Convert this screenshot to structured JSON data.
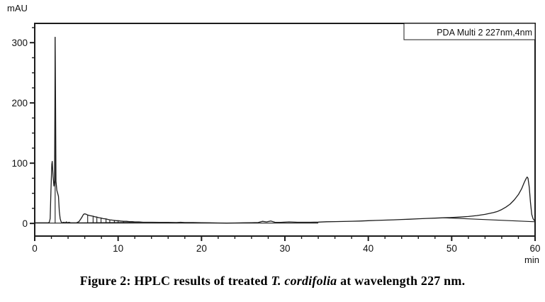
{
  "colors": {
    "trace": "#1c1c1c",
    "frame": "#1c1c1c",
    "text": "#111111",
    "background": "#ffffff"
  },
  "y_axis_title": "mAU",
  "x_axis_unit": "min",
  "legend_label": "PDA Multi 2 227nm,4nm",
  "caption": {
    "prefix": "Figure 2: HPLC results of treated ",
    "italic": "T. cordifolia",
    "suffix": " at wavelength 227 nm."
  },
  "chart_data": {
    "type": "line",
    "title": "",
    "xlabel": "min",
    "ylabel": "mAU",
    "xlim": [
      0,
      60
    ],
    "ylim": [
      -21,
      332
    ],
    "x_major_ticks": [
      0,
      10,
      20,
      30,
      40,
      50,
      60
    ],
    "x_minor_ticks": [
      2,
      4,
      6,
      8,
      12,
      14,
      16,
      18,
      22,
      24,
      26,
      28,
      32,
      34,
      36,
      38,
      42,
      44,
      46,
      48,
      52,
      54,
      56,
      58
    ],
    "y_major_ticks": [
      0,
      100,
      200,
      300
    ],
    "y_minor_ticks": [
      25,
      50,
      75,
      125,
      150,
      175,
      225,
      250,
      275,
      325
    ],
    "grid": false,
    "legend_position": "top-right-inside-box",
    "legend": [
      "PDA Multi 2 227nm,4nm"
    ],
    "series": [
      {
        "name": "PDA Multi 2 227nm,4nm signal",
        "points": [
          [
            0,
            1
          ],
          [
            1.0,
            1
          ],
          [
            1.6,
            1
          ],
          [
            1.75,
            2
          ],
          [
            1.85,
            8
          ],
          [
            1.95,
            55
          ],
          [
            2.05,
            98
          ],
          [
            2.1,
            103
          ],
          [
            2.2,
            78
          ],
          [
            2.3,
            62
          ],
          [
            2.38,
            70
          ],
          [
            2.42,
            200
          ],
          [
            2.45,
            309
          ],
          [
            2.5,
            200
          ],
          [
            2.55,
            70
          ],
          [
            2.65,
            55
          ],
          [
            2.75,
            50
          ],
          [
            2.85,
            45
          ],
          [
            2.95,
            20
          ],
          [
            3.05,
            8
          ],
          [
            3.15,
            3
          ],
          [
            3.3,
            1
          ],
          [
            3.5,
            2
          ],
          [
            3.65,
            1
          ],
          [
            3.8,
            2.5
          ],
          [
            3.95,
            1
          ],
          [
            4.1,
            2
          ],
          [
            4.3,
            1
          ],
          [
            4.6,
            1
          ],
          [
            5.0,
            1
          ],
          [
            5.3,
            3
          ],
          [
            5.6,
            9
          ],
          [
            5.85,
            15
          ],
          [
            6.0,
            16
          ],
          [
            6.2,
            15
          ],
          [
            6.35,
            14
          ],
          [
            6.6,
            13
          ],
          [
            7.0,
            12
          ],
          [
            7.2,
            11
          ],
          [
            7.45,
            10.5
          ],
          [
            7.7,
            9.5
          ],
          [
            7.95,
            9
          ],
          [
            8.2,
            8
          ],
          [
            8.55,
            7.5
          ],
          [
            8.8,
            6.5
          ],
          [
            9.0,
            6
          ],
          [
            9.3,
            5.5
          ],
          [
            9.55,
            5
          ],
          [
            9.8,
            4.5
          ],
          [
            10.0,
            4.5
          ],
          [
            10.3,
            4
          ],
          [
            10.65,
            3.5
          ],
          [
            11.0,
            3.5
          ],
          [
            11.35,
            3
          ],
          [
            11.7,
            3
          ],
          [
            12.0,
            2.5
          ],
          [
            12.5,
            2.5
          ],
          [
            13.0,
            2
          ],
          [
            14.0,
            2
          ],
          [
            15,
            1.8
          ],
          [
            16,
            1.8
          ],
          [
            17,
            1.5
          ],
          [
            17.5,
            2
          ],
          [
            18,
            1.5
          ],
          [
            19,
            1.5
          ],
          [
            20,
            1.2
          ],
          [
            21,
            1
          ],
          [
            22,
            0.8
          ],
          [
            23,
            0.5
          ],
          [
            24,
            0.8
          ],
          [
            25,
            1
          ],
          [
            26,
            1.2
          ],
          [
            26.8,
            1.5
          ],
          [
            27.3,
            3.5
          ],
          [
            27.8,
            2.5
          ],
          [
            28.3,
            4
          ],
          [
            28.8,
            2
          ],
          [
            29.5,
            1.8
          ],
          [
            30.5,
            2.5
          ],
          [
            31.5,
            2
          ],
          [
            33,
            2
          ],
          [
            34,
            2.2
          ],
          [
            35,
            2.8
          ],
          [
            36,
            3
          ],
          [
            37,
            3.2
          ],
          [
            38,
            3.6
          ],
          [
            39,
            4
          ],
          [
            40,
            4.5
          ],
          [
            41,
            5
          ],
          [
            42,
            5.5
          ],
          [
            43,
            6
          ],
          [
            44,
            6.5
          ],
          [
            45,
            7
          ],
          [
            46,
            7.7
          ],
          [
            47,
            8.3
          ],
          [
            48,
            8.8
          ],
          [
            49,
            9.3
          ],
          [
            50,
            9.8
          ],
          [
            51,
            10.5
          ],
          [
            52,
            11.5
          ],
          [
            53,
            13
          ],
          [
            54,
            15
          ],
          [
            55,
            18
          ],
          [
            55.5,
            20
          ],
          [
            56,
            23
          ],
          [
            56.5,
            27
          ],
          [
            57,
            32
          ],
          [
            57.5,
            39
          ],
          [
            58,
            48
          ],
          [
            58.4,
            58
          ],
          [
            58.7,
            68
          ],
          [
            58.9,
            74
          ],
          [
            59.05,
            77
          ],
          [
            59.15,
            75
          ],
          [
            59.3,
            60
          ],
          [
            59.45,
            35
          ],
          [
            59.6,
            15
          ],
          [
            59.75,
            8
          ],
          [
            59.9,
            5
          ],
          [
            60,
            4
          ]
        ]
      },
      {
        "name": "integration baseline (early cluster)",
        "points": [
          [
            5.1,
            1
          ],
          [
            13,
            2
          ]
        ]
      },
      {
        "name": "integration baseline (late peak)",
        "points": [
          [
            49,
            9.3
          ],
          [
            60,
            2.8
          ]
        ]
      },
      {
        "name": "zero baseline",
        "points": [
          [
            0,
            0.5
          ],
          [
            34,
            0.5
          ]
        ]
      }
    ],
    "drop_lines": [
      [
        2.45,
        0,
        309
      ],
      [
        6.35,
        1.2,
        14
      ],
      [
        7.0,
        1.3,
        12
      ],
      [
        7.45,
        1.3,
        10.5
      ],
      [
        7.95,
        1.4,
        9
      ],
      [
        8.55,
        1.4,
        7.5
      ],
      [
        9.0,
        1.5,
        6
      ],
      [
        9.55,
        1.5,
        5
      ],
      [
        10.0,
        1.6,
        4.5
      ],
      [
        10.65,
        1.6,
        3.5
      ],
      [
        11.35,
        1.7,
        3
      ]
    ],
    "annotations": [
      {
        "text": "mAU",
        "position": "top-left"
      },
      {
        "text": "min",
        "position": "below-x-axis-right"
      }
    ],
    "notable_peaks": [
      {
        "t_min": 2.1,
        "height_mAU": 103
      },
      {
        "t_min": 2.45,
        "height_mAU": 309
      },
      {
        "t_min": 6.0,
        "height_mAU": 16
      },
      {
        "t_min": 28.3,
        "height_mAU": 4
      },
      {
        "t_min": 59.0,
        "height_mAU": 77
      }
    ]
  }
}
